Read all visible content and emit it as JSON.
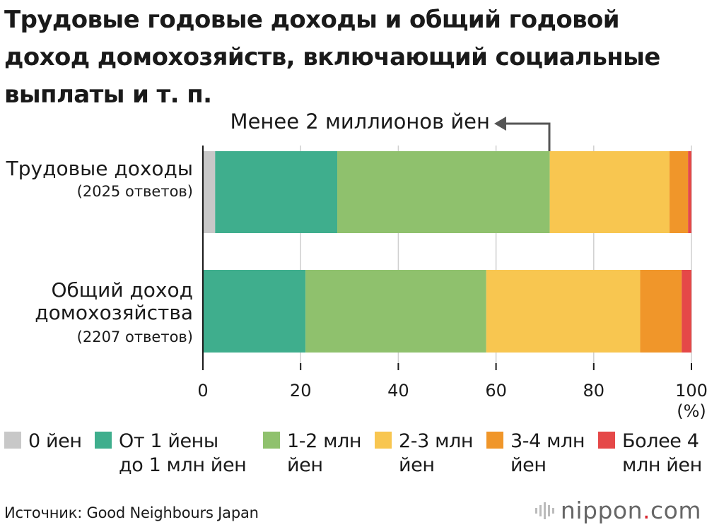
{
  "title": "Трудовые годовые доходы и общий годовой доход домохозяйств, включающий социальные выплаты и т. п.",
  "annotation": "Менее 2 миллионов йен",
  "source": "Источник: Good Neighbours Japan",
  "logo": {
    "word": "nippon",
    "dot": ".",
    "suffix": "com"
  },
  "chart_data": {
    "type": "bar",
    "orientation": "horizontal",
    "stacked": true,
    "categories": [
      {
        "name": "Трудовые доходы",
        "sub": "(2025 ответов)"
      },
      {
        "name": "Общий доход\nдомохозяйства",
        "sub": "(2207 ответов)"
      }
    ],
    "series": [
      {
        "name": "0 йен",
        "color": "#c8c8c8",
        "values": [
          2.5,
          0.0
        ]
      },
      {
        "name": "От 1 йены\nдо 1 млн йен",
        "color": "#3fae8d",
        "values": [
          25.0,
          21.0
        ]
      },
      {
        "name": "1-2 млн\nйен",
        "color": "#8fc16d",
        "values": [
          43.5,
          37.0
        ]
      },
      {
        "name": "2-3 млн\nйен",
        "color": "#f8c650",
        "values": [
          24.5,
          31.5
        ]
      },
      {
        "name": "3-4 млн\nйен",
        "color": "#f0962a",
        "values": [
          3.8,
          8.5
        ]
      },
      {
        "name": "Более 4\nмлн йен",
        "color": "#e54848",
        "values": [
          0.7,
          2.0
        ]
      }
    ],
    "xlim": [
      0,
      100
    ],
    "xticks": [
      "0",
      "20",
      "40",
      "60",
      "80",
      "100"
    ],
    "xunit": "(%)",
    "grid": true,
    "legend": "bottom"
  }
}
